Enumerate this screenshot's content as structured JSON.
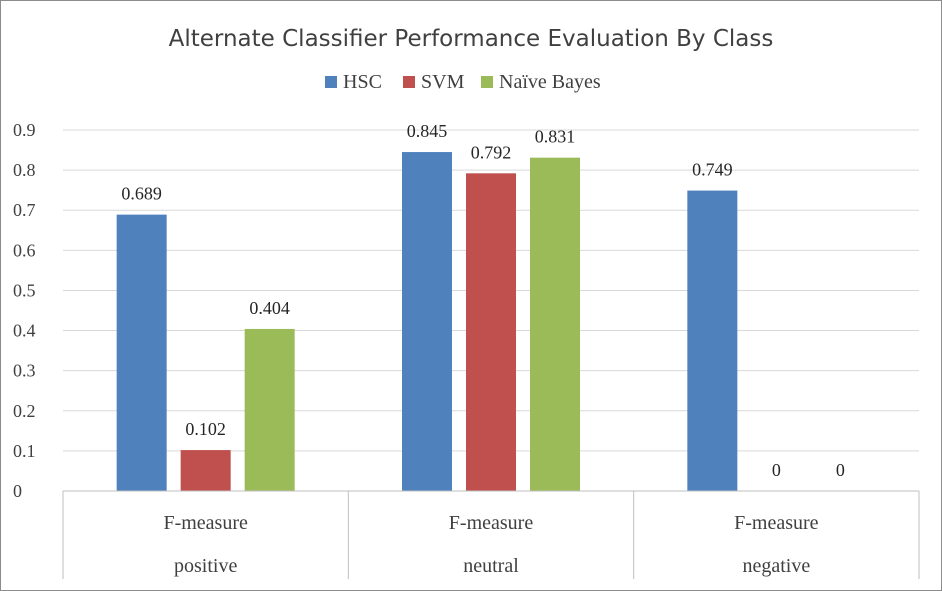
{
  "chart_data": {
    "type": "bar",
    "title": "Alternate Classifier Performance  Evaluation By Class",
    "categories": [
      {
        "line1": "F-measure",
        "line2": "positive"
      },
      {
        "line1": "F-measure",
        "line2": "neutral"
      },
      {
        "line1": "F-measure",
        "line2": "negative"
      }
    ],
    "series": [
      {
        "name": "HSC",
        "color": "#4f81bd",
        "values": [
          0.689,
          0.845,
          0.749
        ],
        "labels": [
          "0.689",
          "0.845",
          "0.749"
        ]
      },
      {
        "name": "SVM",
        "color": "#c0504d",
        "values": [
          0.102,
          0.792,
          0
        ],
        "labels": [
          "0.102",
          "0.792",
          "0"
        ]
      },
      {
        "name": "Naïve Bayes",
        "color": "#9bbb59",
        "values": [
          0.404,
          0.831,
          0
        ],
        "labels": [
          "0.404",
          "0.831",
          "0"
        ]
      }
    ],
    "ylim": [
      0,
      0.9
    ],
    "yticks": [
      "0",
      "0.1",
      "0.2",
      "0.3",
      "0.4",
      "0.5",
      "0.6",
      "0.7",
      "0.8",
      "0.9"
    ],
    "legend_position": "top",
    "grid": true,
    "xlabel": "",
    "ylabel": ""
  }
}
